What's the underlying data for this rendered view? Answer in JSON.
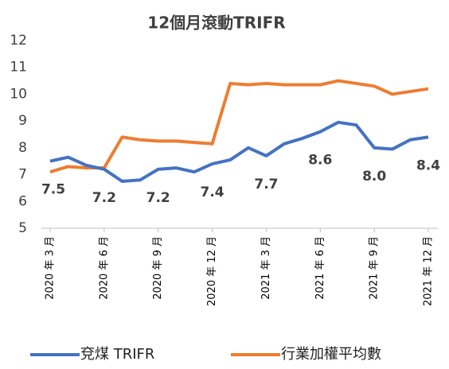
{
  "chart_data": {
    "type": "line",
    "title": "12個月滾動TRIFR",
    "categories": [
      "2020 年 3 月",
      null,
      null,
      "2020 年 6 月",
      null,
      null,
      "2020 年 9 月",
      null,
      null,
      "2020 年 12 月",
      null,
      null,
      "2021 年 3 月",
      null,
      null,
      "2021 年 6 月",
      null,
      null,
      "2021 年 9 月",
      null,
      null,
      "2021 年 12 月"
    ],
    "series": [
      {
        "name": "兗煤 TRIFR",
        "color": "#4472c4",
        "values": [
          7.5,
          7.65,
          7.35,
          7.2,
          6.75,
          6.8,
          7.2,
          7.25,
          7.1,
          7.4,
          7.55,
          8.0,
          7.7,
          8.15,
          8.35,
          8.6,
          8.95,
          8.85,
          8.0,
          7.95,
          8.3,
          8.4
        ],
        "value_labels": [
          "7.5",
          null,
          null,
          "7.2",
          null,
          null,
          "7.2",
          null,
          null,
          "7.4",
          null,
          null,
          "7.7",
          null,
          null,
          "8.6",
          null,
          null,
          "8.0",
          null,
          null,
          "8.4"
        ]
      },
      {
        "name": "行業加權平均數",
        "color": "#ed7d31",
        "values": [
          7.1,
          7.3,
          7.25,
          7.25,
          8.4,
          8.3,
          8.25,
          8.25,
          8.2,
          8.15,
          10.4,
          10.35,
          10.4,
          10.35,
          10.35,
          10.35,
          10.5,
          10.4,
          10.3,
          10.0,
          10.1,
          10.2
        ]
      }
    ],
    "ylim": [
      5,
      12
    ],
    "yticks": [
      5,
      6,
      7,
      8,
      9,
      10,
      11,
      12
    ],
    "grid": false,
    "legend": "bottom"
  }
}
